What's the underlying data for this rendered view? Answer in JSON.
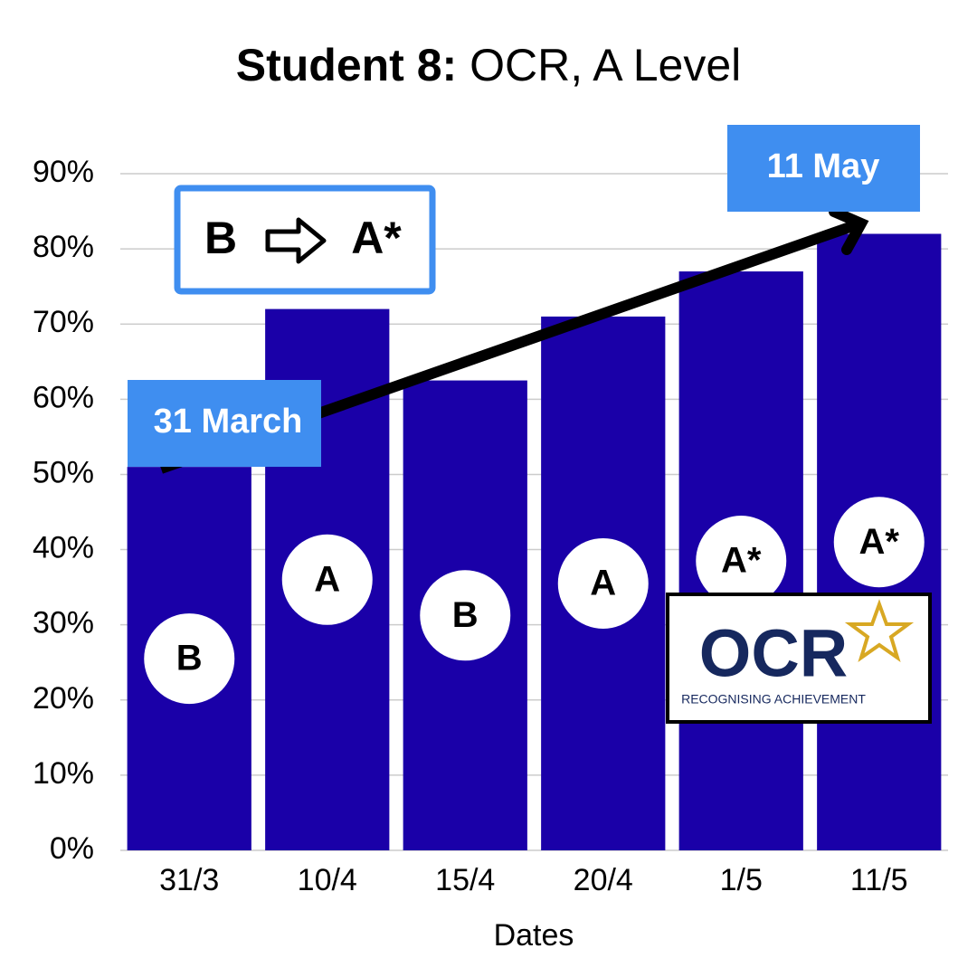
{
  "chart_data": {
    "type": "bar",
    "title": {
      "bold": "Student 8:",
      "regular": "OCR, A Level"
    },
    "x_label": "Dates",
    "categories": [
      "31/3",
      "10/4",
      "15/4",
      "20/4",
      "1/5",
      "11/5"
    ],
    "values": [
      51,
      72,
      62.5,
      71,
      77,
      82
    ],
    "grades": [
      "B",
      "A",
      "B",
      "A",
      "A*",
      "A*"
    ],
    "color": "#1a00a8",
    "ylim": [
      0,
      90
    ],
    "yticks": [
      {
        "value": 0,
        "label": "0%"
      },
      {
        "value": 10,
        "label": "10%"
      },
      {
        "value": 20,
        "label": "20%"
      },
      {
        "value": 30,
        "label": "30%"
      },
      {
        "value": 40,
        "label": "40%"
      },
      {
        "value": 50,
        "label": "50%"
      },
      {
        "value": 60,
        "label": "60%"
      },
      {
        "value": 70,
        "label": "70%"
      },
      {
        "value": 80,
        "label": "80%"
      },
      {
        "value": 90,
        "label": "90%"
      }
    ],
    "grid": true,
    "annotations": {
      "start": "31 March",
      "end": "11 May",
      "from_grade": "B",
      "to_grade": "A*"
    },
    "logo": {
      "name": "OCR",
      "tagline": "RECOGNISING ACHIEVEMENT"
    }
  }
}
